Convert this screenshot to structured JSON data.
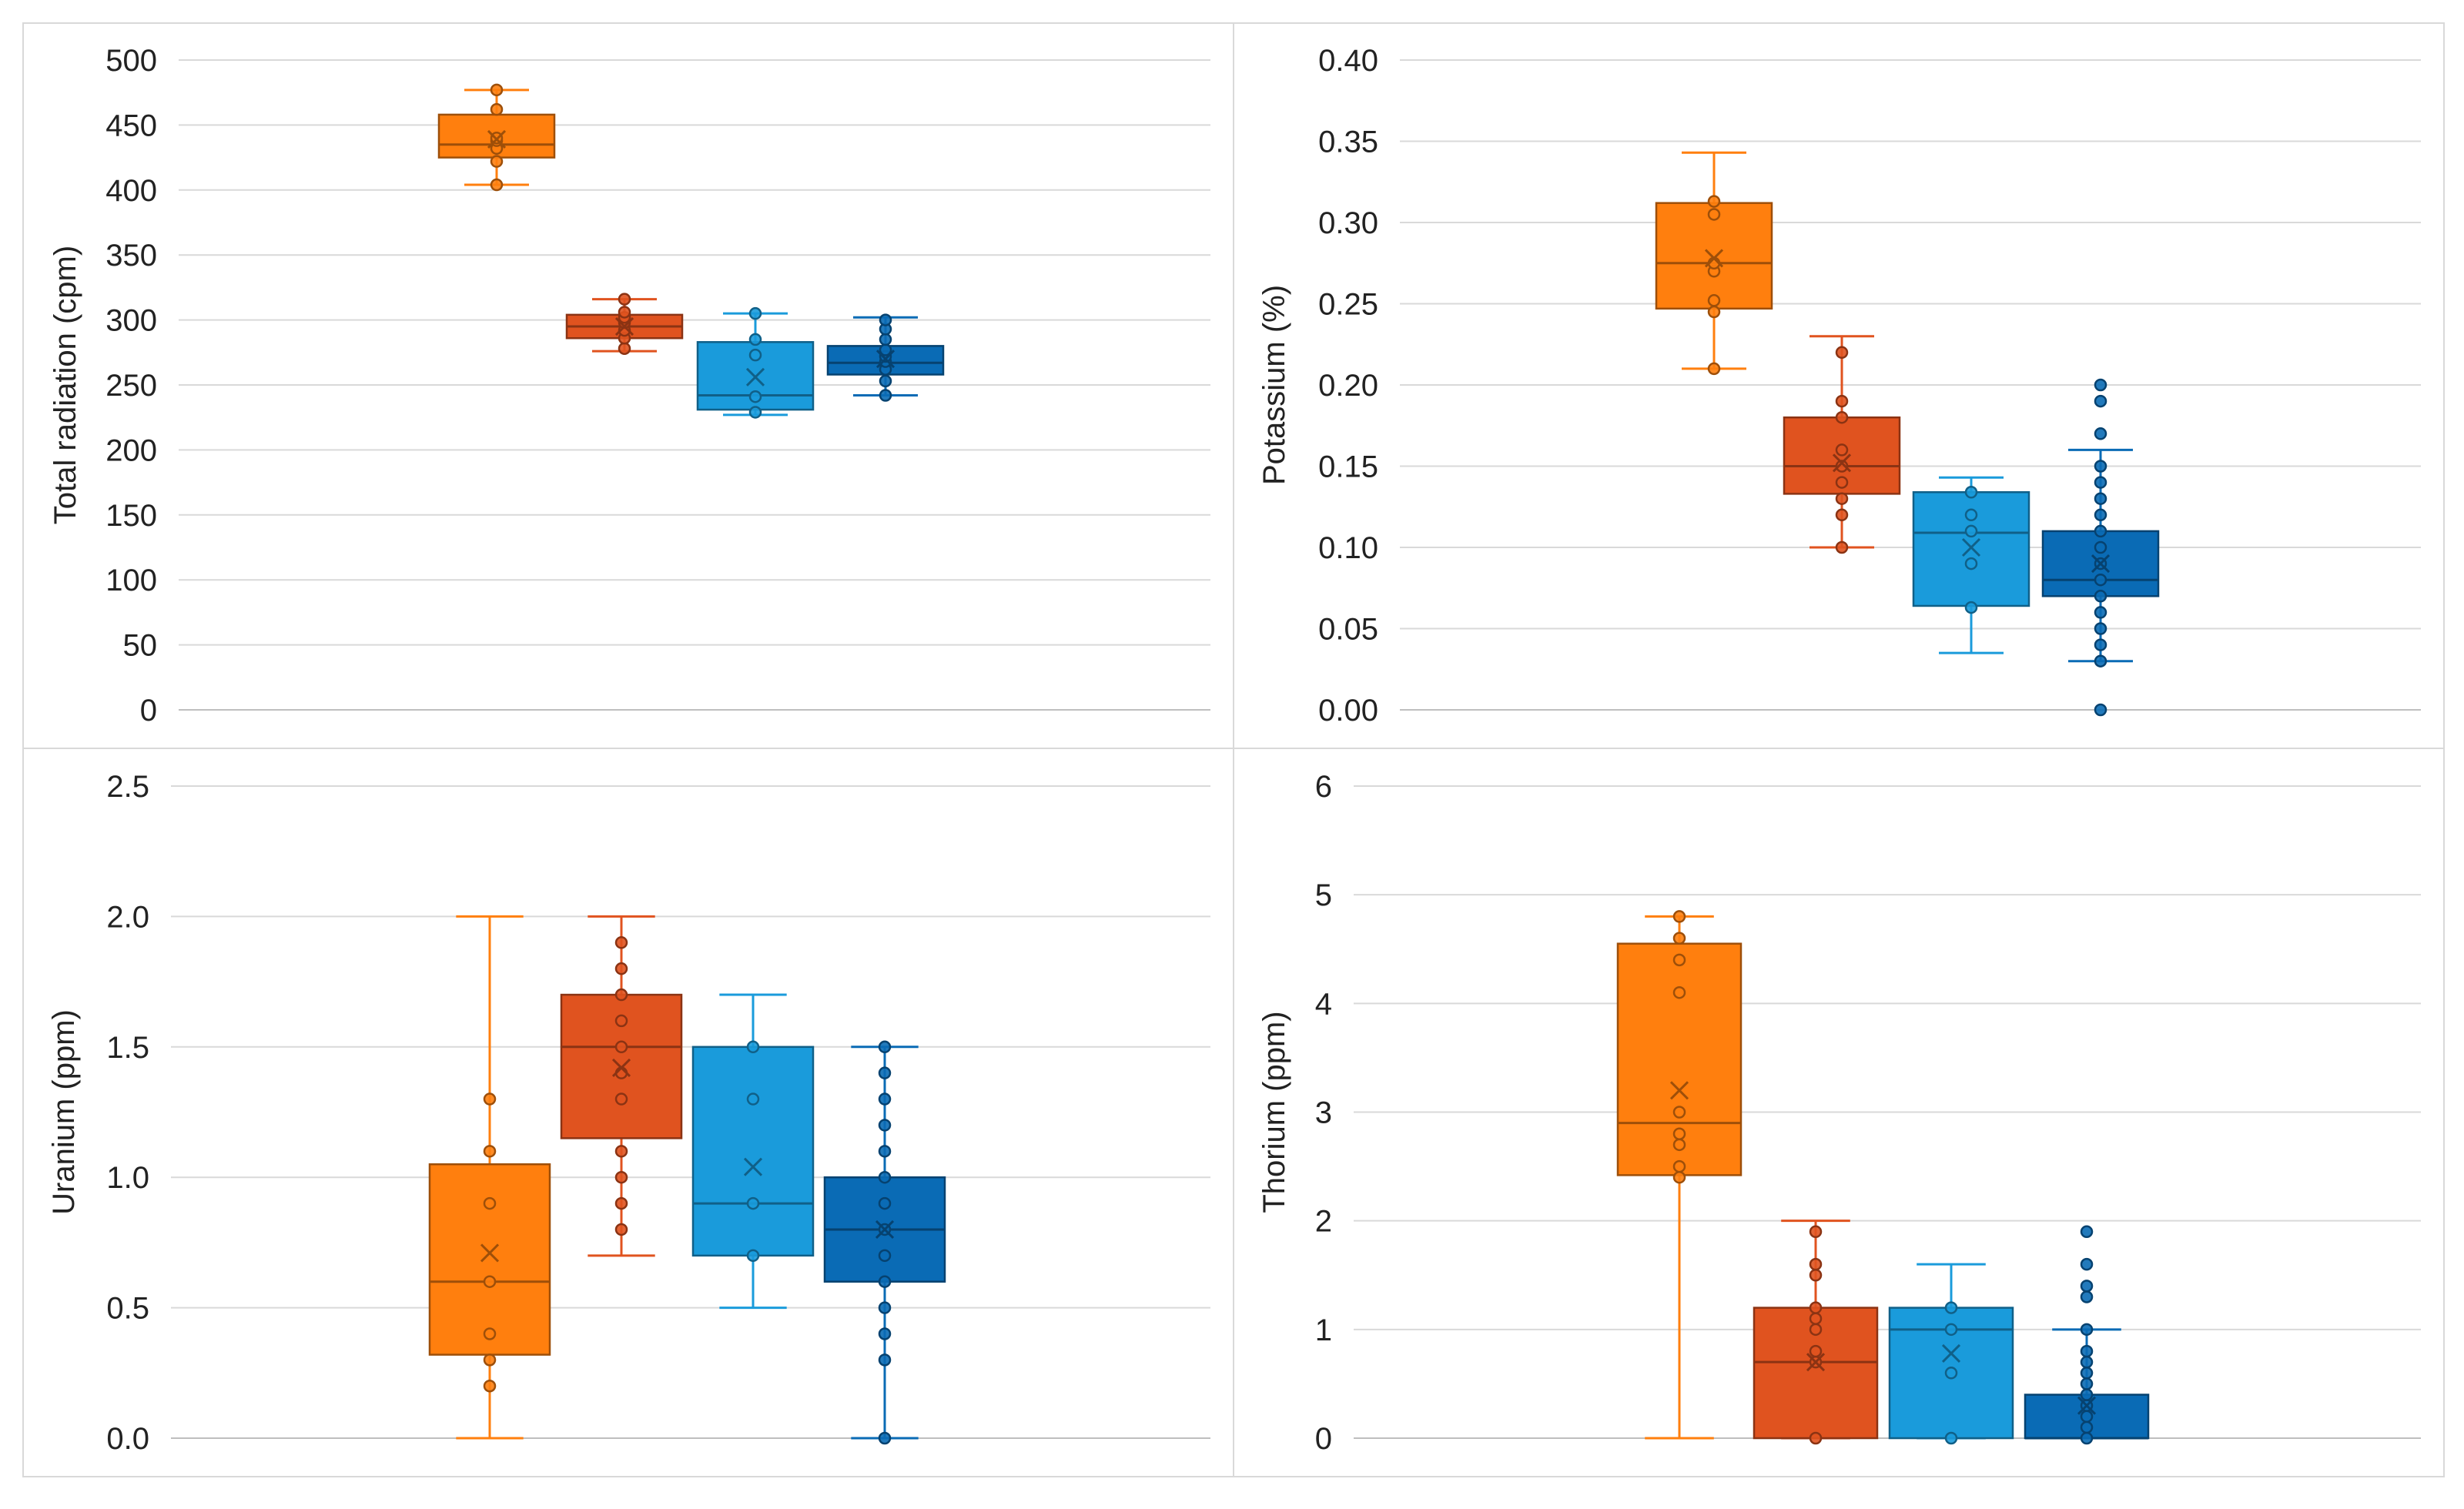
{
  "series_colors": [
    "#FF7F0E",
    "#E0531F",
    "#1A9BDB",
    "#0A6BB5"
  ],
  "chart_data": [
    {
      "type": "box",
      "panel": "top-left",
      "ylabel": "Total radiation (cpm)",
      "ylim": [
        0,
        500
      ],
      "yticks": [
        0,
        50,
        100,
        150,
        200,
        250,
        300,
        350,
        400,
        450,
        500
      ],
      "tick_decimals": 0,
      "grid": true,
      "series": [
        {
          "min": 404,
          "q1": 425,
          "median": 435,
          "q3": 458,
          "max": 477,
          "mean": 439,
          "points": [
            404,
            422,
            432,
            438,
            440,
            462,
            477
          ]
        },
        {
          "min": 276,
          "q1": 286,
          "median": 295,
          "q3": 304,
          "max": 316,
          "mean": 295,
          "points": [
            278,
            286,
            292,
            298,
            302,
            306,
            316
          ]
        },
        {
          "min": 227,
          "q1": 231,
          "median": 242,
          "q3": 283,
          "max": 305,
          "mean": 256,
          "points": [
            229,
            241,
            273,
            285,
            305
          ]
        },
        {
          "min": 242,
          "q1": 258,
          "median": 267,
          "q3": 280,
          "max": 302,
          "mean": 270,
          "points": [
            242,
            253,
            262,
            268,
            272,
            277,
            285,
            293,
            300
          ]
        }
      ]
    },
    {
      "type": "box",
      "panel": "top-right",
      "ylabel": "Potassium (%)",
      "ylim": [
        0,
        0.4
      ],
      "yticks": [
        0,
        0.05,
        0.1,
        0.15,
        0.2,
        0.25,
        0.3,
        0.35,
        0.4
      ],
      "tick_decimals": 2,
      "grid": true,
      "series": [
        {
          "min": 0.21,
          "q1": 0.247,
          "median": 0.275,
          "q3": 0.312,
          "max": 0.343,
          "mean": 0.278,
          "points": [
            0.21,
            0.245,
            0.252,
            0.27,
            0.275,
            0.305,
            0.313
          ]
        },
        {
          "min": 0.1,
          "q1": 0.133,
          "median": 0.15,
          "q3": 0.18,
          "max": 0.23,
          "mean": 0.152,
          "points": [
            0.1,
            0.12,
            0.13,
            0.14,
            0.15,
            0.16,
            0.18,
            0.19,
            0.22
          ]
        },
        {
          "min": 0.035,
          "q1": 0.064,
          "median": 0.109,
          "q3": 0.134,
          "max": 0.143,
          "mean": 0.1,
          "points": [
            0.063,
            0.09,
            0.11,
            0.12,
            0.134
          ]
        },
        {
          "min": 0.03,
          "q1": 0.07,
          "median": 0.08,
          "q3": 0.11,
          "max": 0.16,
          "mean": 0.09,
          "points": [
            0.0,
            0.03,
            0.04,
            0.05,
            0.06,
            0.07,
            0.08,
            0.09,
            0.1,
            0.11,
            0.12,
            0.13,
            0.14,
            0.15,
            0.17,
            0.19,
            0.2
          ]
        }
      ]
    },
    {
      "type": "box",
      "panel": "bottom-left",
      "ylabel": "Uranium (ppm)",
      "ylim": [
        0,
        2.5
      ],
      "yticks": [
        0,
        0.5,
        1.0,
        1.5,
        2.0,
        2.5
      ],
      "tick_decimals": 1,
      "grid": true,
      "series": [
        {
          "min": 0.0,
          "q1": 0.32,
          "median": 0.6,
          "q3": 1.05,
          "max": 2.0,
          "mean": 0.71,
          "points": [
            0.2,
            0.3,
            0.4,
            0.6,
            0.9,
            1.1,
            1.3
          ]
        },
        {
          "min": 0.7,
          "q1": 1.15,
          "median": 1.5,
          "q3": 1.7,
          "max": 2.0,
          "mean": 1.42,
          "points": [
            0.8,
            0.9,
            1.0,
            1.1,
            1.3,
            1.4,
            1.5,
            1.6,
            1.7,
            1.8,
            1.9
          ]
        },
        {
          "min": 0.5,
          "q1": 0.7,
          "median": 0.9,
          "q3": 1.5,
          "max": 1.7,
          "mean": 1.04,
          "points": [
            0.7,
            0.9,
            1.3,
            1.5
          ]
        },
        {
          "min": 0.0,
          "q1": 0.6,
          "median": 0.8,
          "q3": 1.0,
          "max": 1.5,
          "mean": 0.8,
          "points": [
            0.0,
            0.3,
            0.4,
            0.5,
            0.6,
            0.7,
            0.8,
            0.9,
            1.0,
            1.1,
            1.2,
            1.3,
            1.4,
            1.5
          ]
        }
      ]
    },
    {
      "type": "box",
      "panel": "bottom-right",
      "ylabel": "Thorium (ppm)",
      "ylim": [
        0,
        6
      ],
      "yticks": [
        0,
        1,
        2,
        3,
        4,
        5,
        6
      ],
      "tick_decimals": 0,
      "grid": true,
      "series": [
        {
          "min": 0.0,
          "q1": 2.42,
          "median": 2.9,
          "q3": 4.55,
          "max": 4.8,
          "mean": 3.2,
          "points": [
            2.4,
            2.5,
            2.7,
            2.8,
            3.0,
            4.1,
            4.4,
            4.6,
            4.8
          ]
        },
        {
          "min": 0.0,
          "q1": 0.0,
          "median": 0.7,
          "q3": 1.2,
          "max": 2.0,
          "mean": 0.7,
          "points": [
            0.0,
            0.7,
            0.8,
            1.0,
            1.1,
            1.2,
            1.5,
            1.6,
            1.9
          ]
        },
        {
          "min": 0.0,
          "q1": 0.0,
          "median": 1.0,
          "q3": 1.2,
          "max": 1.6,
          "mean": 0.78,
          "points": [
            0.0,
            0.6,
            1.0,
            1.2
          ]
        },
        {
          "min": 0.0,
          "q1": 0.0,
          "median": 0.0,
          "q3": 0.4,
          "max": 1.0,
          "mean": 0.3,
          "points": [
            0.0,
            0.1,
            0.2,
            0.3,
            0.4,
            0.5,
            0.6,
            0.7,
            0.8,
            1.0,
            1.3,
            1.4,
            1.6,
            1.9
          ]
        }
      ]
    }
  ]
}
